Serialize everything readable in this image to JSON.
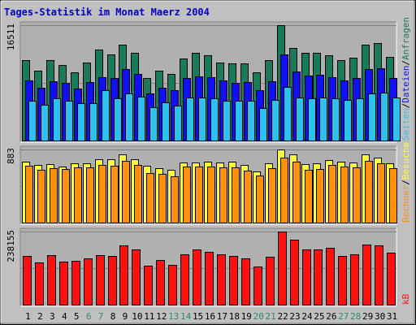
{
  "title": "Tages-Statistik im Monat Maerz 2004",
  "colors": {
    "background": "#C0C0C0",
    "plot_bg": "#B0B0B0",
    "title": "#0000C0",
    "anfragen": "#1A7A5A",
    "dateien": "#1010F0",
    "seiten": "#30C0F0",
    "besuche": "#FFFF40",
    "rechner": "#FF9010",
    "kb": "#FF1010",
    "weekend": "#2A8A6A",
    "weekday": "#000000"
  },
  "chart_data": [
    {
      "type": "bar",
      "panel": "hits",
      "ymax_label": "16511",
      "ylim": [
        0,
        16511
      ],
      "categories": [
        "1",
        "2",
        "3",
        "4",
        "5",
        "6",
        "7",
        "8",
        "9",
        "10",
        "11",
        "12",
        "13",
        "14",
        "15",
        "16",
        "17",
        "18",
        "19",
        "20",
        "21",
        "22",
        "23",
        "24",
        "25",
        "26",
        "27",
        "28",
        "29",
        "30",
        "31"
      ],
      "weekend_days": [
        "6",
        "7",
        "13",
        "14",
        "20",
        "21",
        "27",
        "28"
      ],
      "legend": [
        {
          "label": "Anfragen",
          "color": "#1A7A5A"
        },
        {
          "label": "Dateien",
          "color": "#1010F0"
        },
        {
          "label": "Seiten",
          "color": "#30C0F0"
        }
      ],
      "series": [
        {
          "name": "Anfragen",
          "values": [
            11500,
            10000,
            11500,
            10800,
            9800,
            11200,
            13000,
            12300,
            13700,
            12600,
            9000,
            10000,
            9500,
            11800,
            12500,
            12200,
            11200,
            11000,
            11000,
            9800,
            11500,
            16511,
            13300,
            12600,
            12600,
            12200,
            11500,
            11900,
            13700,
            14000,
            12000
          ]
        },
        {
          "name": "Dateien",
          "values": [
            8600,
            7500,
            8500,
            8200,
            7400,
            8400,
            9100,
            9000,
            10200,
            9500,
            6700,
            7600,
            7200,
            9000,
            9200,
            9100,
            8600,
            8300,
            8400,
            7200,
            8500,
            12300,
            9900,
            9300,
            9400,
            9100,
            8600,
            8900,
            10200,
            10400,
            9000
          ]
        },
        {
          "name": "Seiten",
          "values": [
            5700,
            5100,
            6000,
            5700,
            5300,
            5400,
            7200,
            6000,
            6800,
            6300,
            4800,
            5500,
            5000,
            6200,
            6200,
            6000,
            5700,
            5700,
            5700,
            4700,
            5800,
            7700,
            6200,
            6100,
            6200,
            6000,
            5800,
            6000,
            6700,
            6900,
            6200
          ]
        }
      ]
    },
    {
      "type": "bar",
      "panel": "visits",
      "ymax_label": "883",
      "ylim": [
        0,
        883
      ],
      "categories": [
        "1",
        "2",
        "3",
        "4",
        "5",
        "6",
        "7",
        "8",
        "9",
        "10",
        "11",
        "12",
        "13",
        "14",
        "15",
        "16",
        "17",
        "18",
        "19",
        "20",
        "21",
        "22",
        "23",
        "24",
        "25",
        "26",
        "27",
        "28",
        "29",
        "30",
        "31"
      ],
      "legend": [
        {
          "label": "Besuche",
          "color": "#FFFF40"
        },
        {
          "label": "Rechner",
          "color": "#FF9010"
        }
      ],
      "series": [
        {
          "name": "Besuche",
          "values": [
            740,
            700,
            710,
            680,
            720,
            720,
            770,
            770,
            820,
            770,
            690,
            660,
            640,
            730,
            730,
            740,
            730,
            740,
            700,
            620,
            720,
            883,
            820,
            710,
            720,
            760,
            740,
            730,
            820,
            780,
            720
          ]
        },
        {
          "name": "Rechner",
          "values": [
            690,
            640,
            660,
            650,
            670,
            670,
            700,
            690,
            750,
            700,
            600,
            590,
            560,
            680,
            680,
            680,
            670,
            670,
            630,
            570,
            660,
            780,
            740,
            640,
            650,
            700,
            680,
            670,
            750,
            720,
            660
          ]
        }
      ]
    },
    {
      "type": "bar",
      "panel": "kb",
      "ymax_label": "238155",
      "ylim": [
        0,
        238155
      ],
      "categories": [
        "1",
        "2",
        "3",
        "4",
        "5",
        "6",
        "7",
        "8",
        "9",
        "10",
        "11",
        "12",
        "13",
        "14",
        "15",
        "16",
        "17",
        "18",
        "19",
        "20",
        "21",
        "22",
        "23",
        "24",
        "25",
        "26",
        "27",
        "28",
        "29",
        "30",
        "31"
      ],
      "legend": [
        {
          "label": "kB",
          "color": "#FF1010"
        }
      ],
      "series": [
        {
          "name": "kB",
          "values": [
            160000,
            138000,
            161000,
            141000,
            143000,
            151000,
            162000,
            159000,
            194000,
            181000,
            126000,
            145000,
            130000,
            165000,
            180000,
            171000,
            163000,
            158000,
            152000,
            125000,
            157000,
            238155,
            213000,
            181000,
            179000,
            186000,
            160000,
            163000,
            196000,
            194000,
            170000
          ]
        }
      ]
    }
  ]
}
